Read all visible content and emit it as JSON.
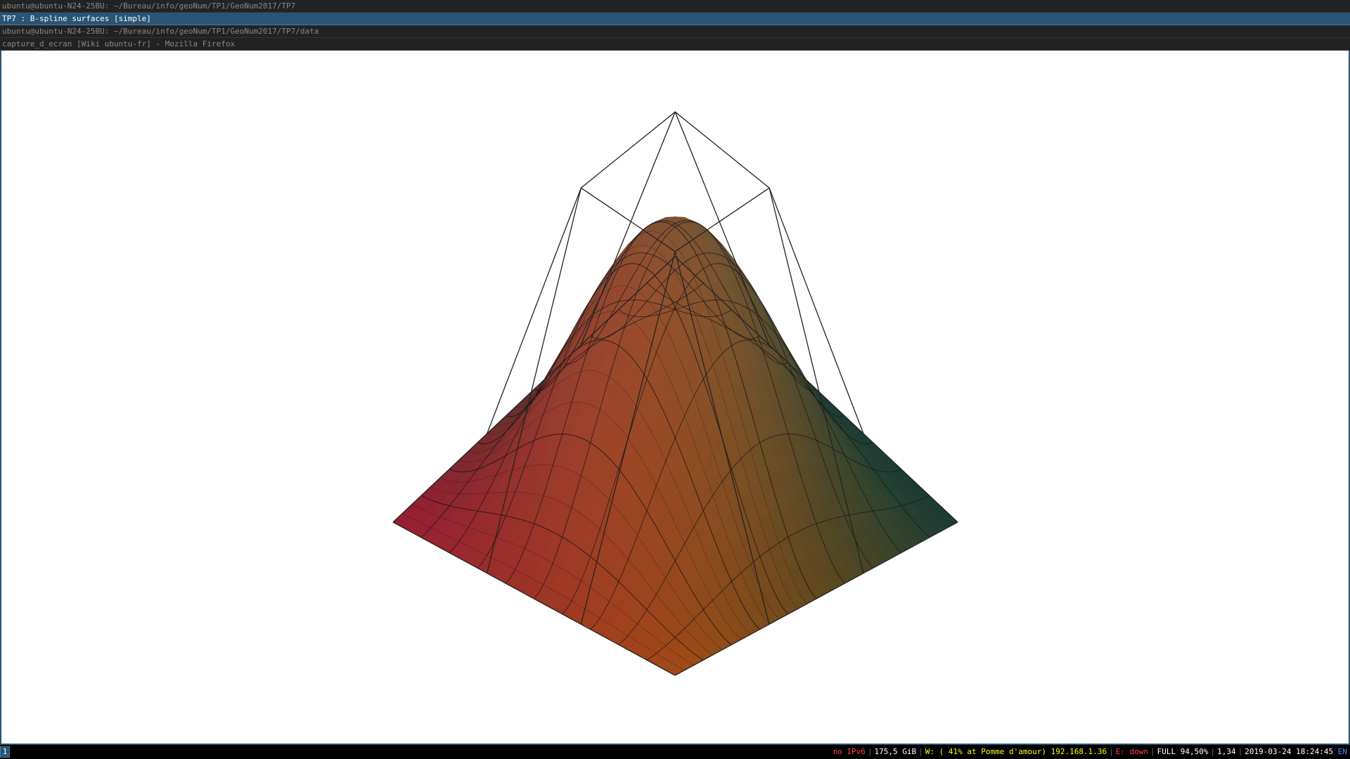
{
  "windows": {
    "title_1": "ubuntu@ubuntu-N24-25BU: ~/Bureau/info/geoNum/TP1/GeoNum2017/TP7",
    "title_2": "TP7 : B-spline surfaces [simple]",
    "title_3": "ubuntu@ubuntu-N24-25BU: ~/Bureau/info/geoNum/TP1/GeoNum2017/TP7/data",
    "title_4": "capture_d_ecran [Wiki ubuntu-fr] - Mozilla Firefox"
  },
  "statusbar": {
    "workspace": "1",
    "ipv6": "no IPv6",
    "disk": "175,5 GiB",
    "wifi": "W: ( 41% at Pomme d'amour) 192.168.1.36",
    "ethernet": "E: down",
    "battery": "FULL 94,50%",
    "load": "1,34",
    "datetime": "2019-03-24 18:24:45",
    "lang": "EN"
  },
  "colors": {
    "active_title_bg": "#285577",
    "ipv6_color": "#ff4444",
    "wifi_color": "#ffff00",
    "ethernet_color": "#ff4444",
    "lang_color": "#4488ff",
    "corner_left": "#c81e5a",
    "corner_front": "#a0143c",
    "corner_back": "#8a1a55",
    "corner_right": "#7a0a60",
    "mid_orange": "#d8621c",
    "mid_green": "#3a6a1a",
    "mid_dark_green": "#2a5a1a",
    "peak": "#7a3a10"
  },
  "scene": {
    "icon": "bspline-surface-render"
  }
}
